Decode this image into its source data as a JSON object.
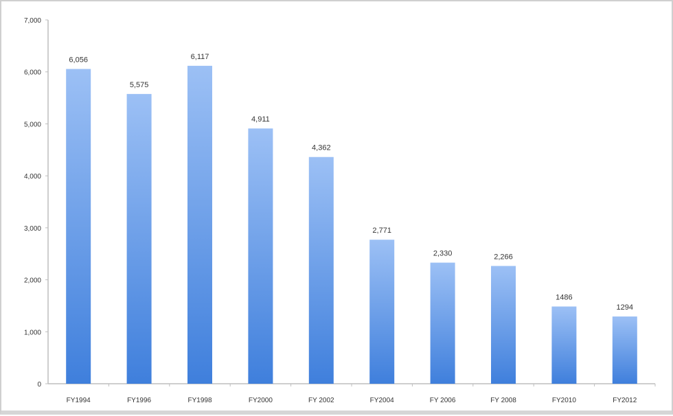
{
  "chart_data": {
    "type": "bar",
    "title": "",
    "xlabel": "",
    "ylabel": "",
    "categories": [
      "FY1994",
      "FY1996",
      "FY1998",
      "FY2000",
      "FY 2002",
      "FY2004",
      "FY 2006",
      "FY 2008",
      "FY2010",
      "FY2012"
    ],
    "values": [
      6056,
      5575,
      6117,
      4911,
      4362,
      2771,
      2330,
      2266,
      1486,
      1294
    ],
    "data_labels": [
      "6,056",
      "5,575",
      "6,117",
      "4,911",
      "4,362",
      "2,771",
      "2,330",
      "2,266",
      "1486",
      "1294"
    ],
    "ylim": [
      0,
      7000
    ],
    "yticks": [
      0,
      1000,
      2000,
      3000,
      4000,
      5000,
      6000,
      7000
    ],
    "ytick_labels": [
      "0",
      "1,000",
      "2,000",
      "3,000",
      "4,000",
      "5,000",
      "6,000",
      "7,000"
    ],
    "grid": false,
    "legend": "none",
    "colors": {
      "bar_top": "#9cc0f5",
      "bar_bottom": "#3f7fdc",
      "axis": "#bdbdbd"
    }
  }
}
